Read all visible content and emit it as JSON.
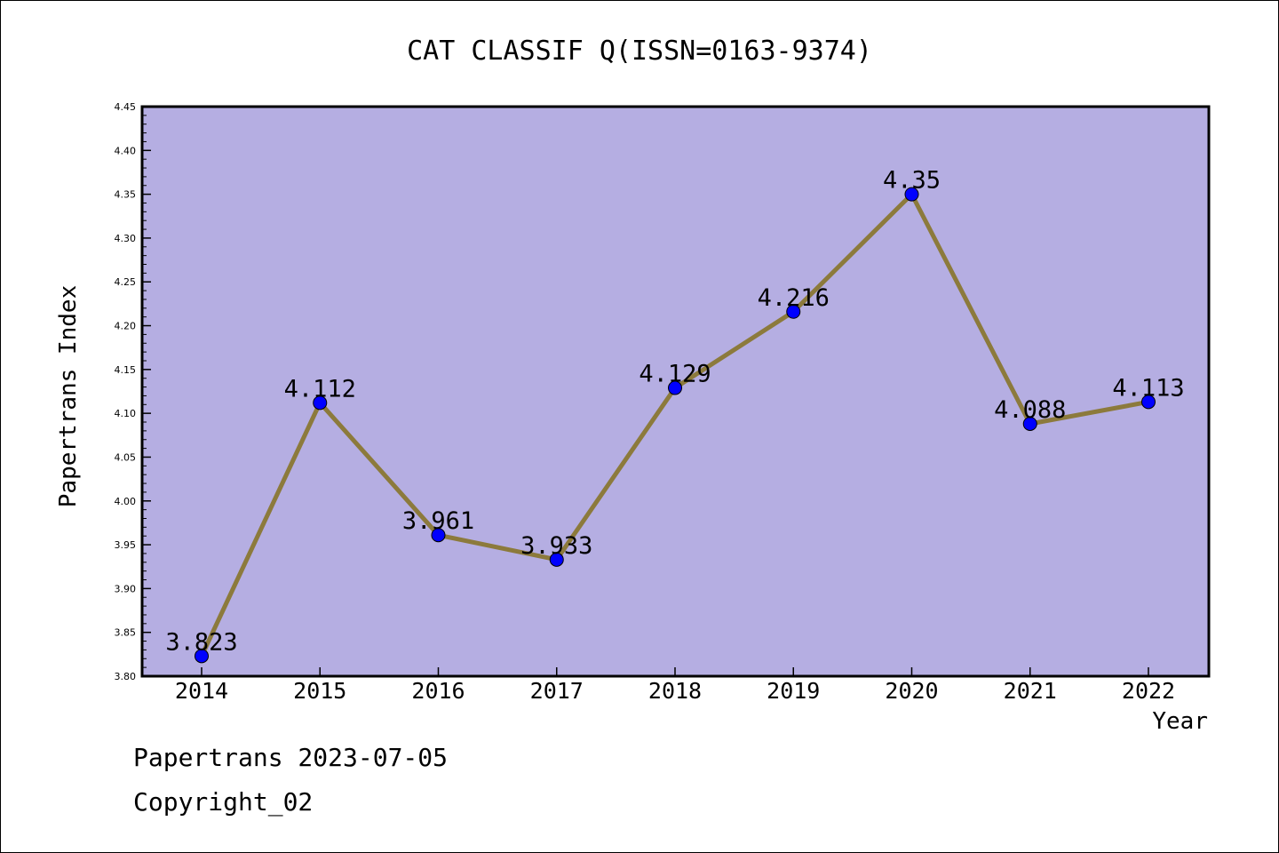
{
  "chart_data": {
    "type": "line",
    "title": "CAT CLASSIF Q(ISSN=0163-9374)",
    "xlabel": "Year",
    "ylabel": "Papertrans Index",
    "categories": [
      "2014",
      "2015",
      "2016",
      "2017",
      "2018",
      "2019",
      "2020",
      "2021",
      "2022"
    ],
    "values": [
      3.823,
      4.112,
      3.961,
      3.933,
      4.129,
      4.216,
      4.35,
      4.088,
      4.113
    ],
    "data_labels": [
      "3.823",
      "4.112",
      "3.961",
      "3.933",
      "4.129",
      "4.216",
      "4.35",
      "4.088",
      "4.113"
    ],
    "ylim": [
      3.8,
      4.45
    ],
    "yticks": [
      "3.80",
      "3.85",
      "3.90",
      "3.95",
      "4.00",
      "4.05",
      "4.10",
      "4.15",
      "4.20",
      "4.25",
      "4.30",
      "4.35",
      "4.40",
      "4.45"
    ],
    "grid": false,
    "legend": "none",
    "colors": {
      "plot_background": "#b5aee2",
      "line": "#8c7a3c",
      "marker": "#0000ff"
    }
  },
  "footer": {
    "date_line": "Papertrans 2023-07-05",
    "copyright": "Copyright_02"
  }
}
